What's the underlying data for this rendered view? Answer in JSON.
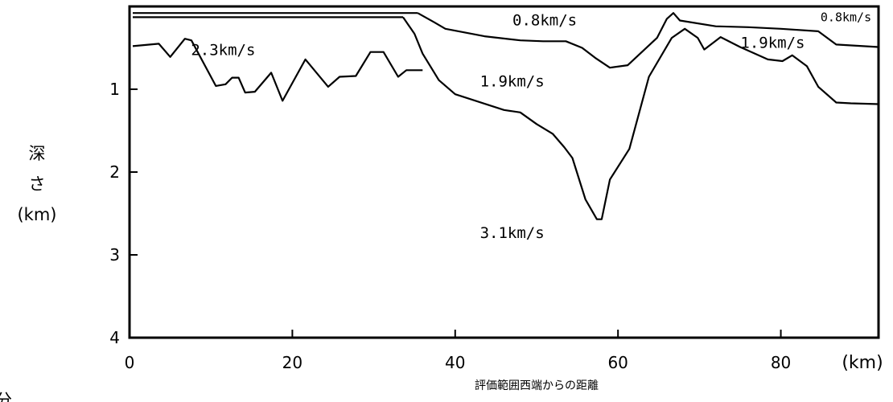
{
  "chart_data": {
    "type": "line",
    "xlabel": "評価範囲西端からの距離",
    "x_unit": "(km)",
    "ylabel_lines": [
      "深",
      "さ",
      "(km)"
    ],
    "xlim": [
      0,
      92
    ],
    "ylim": [
      0,
      4
    ],
    "y_inverted": true,
    "x_ticks": [
      0,
      20,
      40,
      60,
      80
    ],
    "x_tick_labels": [
      "0",
      "20",
      "40",
      "60",
      "80"
    ],
    "y_ticks": [
      1,
      2,
      3,
      4
    ],
    "y_tick_labels": [
      "1",
      "2",
      "3",
      "4"
    ],
    "grid": false,
    "legend": "none",
    "series": [
      {
        "x": [
          0.4,
          35.4
        ],
        "y": [
          0.08,
          0.08
        ]
      },
      {
        "x": [
          0.4,
          33.6
        ],
        "y": [
          0.13,
          0.13
        ]
      },
      {
        "x": [
          35.4,
          37.4,
          38.8,
          43.6,
          48,
          50.8,
          53.6,
          55.6,
          57.2,
          59,
          61.2,
          64.8,
          66,
          66.8,
          67.6,
          72,
          76,
          80,
          84.6,
          86.8,
          92
        ],
        "y": [
          0.08,
          0.19,
          0.27,
          0.36,
          0.41,
          0.42,
          0.42,
          0.5,
          0.62,
          0.74,
          0.71,
          0.38,
          0.15,
          0.08,
          0.17,
          0.24,
          0.25,
          0.27,
          0.3,
          0.46,
          0.49
        ]
      },
      {
        "x": [
          0.4,
          3.6,
          5,
          6.8,
          7.6,
          10.6,
          11.8,
          12.6,
          13.4,
          14.2,
          15.4,
          17.4,
          18.8,
          21.6,
          24.4,
          25.8,
          27.8,
          29.6,
          31.2,
          33,
          34,
          36
        ],
        "y": [
          0.48,
          0.45,
          0.61,
          0.39,
          0.41,
          0.96,
          0.94,
          0.86,
          0.86,
          1.04,
          1.03,
          0.8,
          1.14,
          0.64,
          0.97,
          0.85,
          0.84,
          0.55,
          0.55,
          0.85,
          0.77,
          0.77
        ]
      },
      {
        "x": [
          33.6,
          35,
          36,
          38,
          40,
          46,
          48,
          50,
          52,
          53.4,
          54.4,
          56,
          57.4,
          58,
          59,
          61.4,
          63.8,
          66.6,
          68.2,
          69.8,
          70.6,
          72.6,
          75,
          78.4,
          80.2,
          81.4,
          83.2,
          84.6,
          86.8,
          88.6,
          92
        ],
        "y": [
          0.13,
          0.33,
          0.57,
          0.89,
          1.06,
          1.25,
          1.28,
          1.42,
          1.54,
          1.7,
          1.83,
          2.33,
          2.57,
          2.57,
          2.09,
          1.72,
          0.85,
          0.38,
          0.27,
          0.38,
          0.52,
          0.37,
          0.49,
          0.64,
          0.66,
          0.59,
          0.72,
          0.97,
          1.16,
          1.17,
          1.18
        ]
      }
    ],
    "annotations": [
      {
        "text": "2.3km/s",
        "x": 11.5,
        "y": 0.52
      },
      {
        "text": "0.8km/s",
        "x": 51,
        "y": 0.16
      },
      {
        "text": "0.8km/s",
        "x": 88,
        "y": 0.11
      },
      {
        "text": "1.9km/s",
        "x": 79,
        "y": 0.43
      },
      {
        "text": "1.9km/s",
        "x": 47,
        "y": 0.9
      },
      {
        "text": "3.1km/s",
        "x": 47,
        "y": 2.73
      }
    ]
  },
  "footer": {
    "partial_char": "分"
  }
}
